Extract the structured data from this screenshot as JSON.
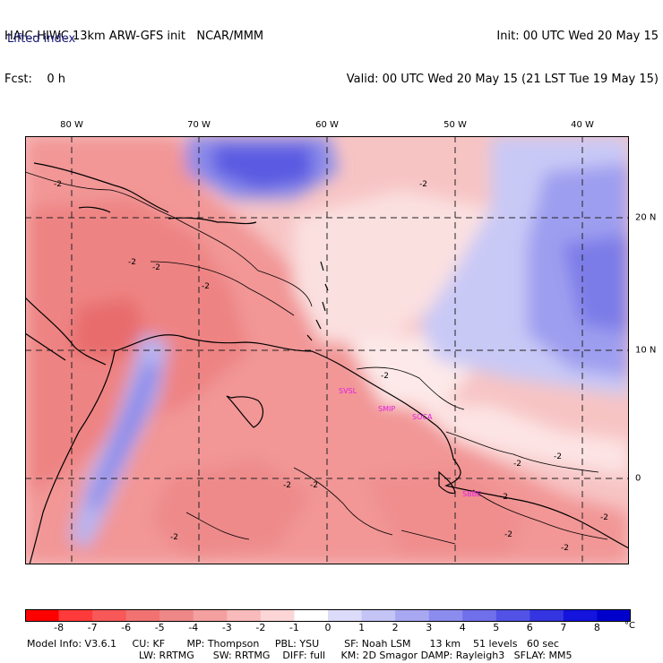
{
  "header": {
    "title_left": "HAIC-HIWC 13km ARW-GFS init   NCAR/MMM",
    "forecast": "Fcst:    0 h",
    "variable": "Lifted index",
    "init": "Init: 00 UTC Wed 20 May 15",
    "valid": "Valid: 00 UTC Wed 20 May 15 (21 LST Tue 19 May 15)"
  },
  "map": {
    "longitude_labels": [
      "80 W",
      "70 W",
      "60 W",
      "50 W",
      "40 W"
    ],
    "latitude_labels": [
      "20 N",
      "10 N",
      "0"
    ],
    "contour_labels": [
      "-2",
      "-2",
      "-2",
      "-2",
      "-2",
      "-2",
      "-2",
      "-2",
      "-2",
      "-2",
      "-2",
      "-2",
      "-2",
      "-2",
      "-2"
    ],
    "stations": [
      "SVSL",
      "SMIP",
      "SOCA",
      "SBBE"
    ],
    "station_color": "#e020e0",
    "coast_color": "#000000"
  },
  "colorbar": {
    "labels": [
      "-8",
      "-7",
      "-6",
      "-5",
      "-4",
      "-3",
      "-2",
      "-1",
      "0",
      "1",
      "2",
      "3",
      "4",
      "5",
      "6",
      "7",
      "8"
    ],
    "unit": "°C",
    "colors": [
      "#ff0000",
      "#ff3a3a",
      "#f85858",
      "#f27272",
      "#ee8888",
      "#f4a0a0",
      "#f8baba",
      "#fcd6d6",
      "#ffffff",
      "#dcdcfa",
      "#c4c4f6",
      "#a8a8f2",
      "#8c8cee",
      "#7070ea",
      "#5252e6",
      "#3434e0",
      "#1414dc",
      "#0000cc"
    ]
  },
  "footer": {
    "line1": "Model Info: V3.6.1     CU: KF       MP: Thompson     PBL: YSU        SF: Noah LSM      13 km    51 levels   60 sec",
    "line2": "LW: RRTMG      SW: RRTMG    DIFF: full     KM: 2D Smagor DAMP: Rayleigh3   SFLAY: MM5"
  }
}
